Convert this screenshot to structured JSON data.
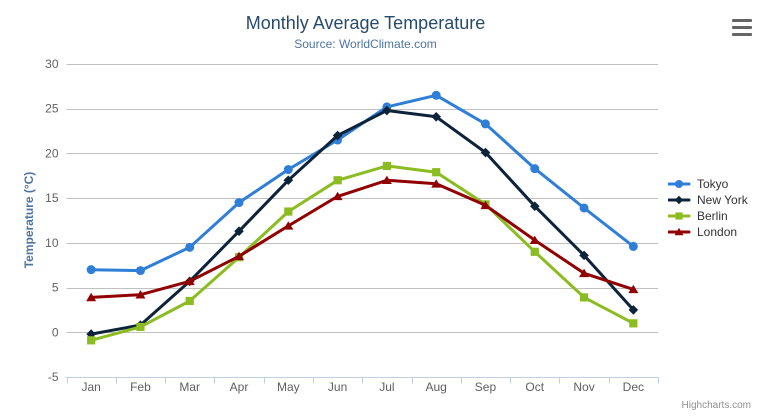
{
  "chart": {
    "title": "Monthly Average Temperature",
    "subtitle": "Source: WorldClimate.com",
    "credits": "Highcharts.com",
    "menu_icon": "hamburger-menu"
  },
  "chart_data": {
    "type": "line",
    "title": "Monthly Average Temperature",
    "subtitle": "Source: WorldClimate.com",
    "xlabel": "",
    "ylabel": "Temperature (°C)",
    "ylim": [
      -5,
      30
    ],
    "yticks": [
      -5,
      0,
      5,
      10,
      15,
      20,
      25,
      30
    ],
    "grid": true,
    "legend_position": "right",
    "categories": [
      "Jan",
      "Feb",
      "Mar",
      "Apr",
      "May",
      "Jun",
      "Jul",
      "Aug",
      "Sep",
      "Oct",
      "Nov",
      "Dec"
    ],
    "series": [
      {
        "name": "Tokyo",
        "color": "#2f7ed8",
        "marker": "circle",
        "values": [
          7.0,
          6.9,
          9.5,
          14.5,
          18.2,
          21.5,
          25.2,
          26.5,
          23.3,
          18.3,
          13.9,
          9.6
        ]
      },
      {
        "name": "New York",
        "color": "#0d233a",
        "marker": "diamond",
        "values": [
          -0.2,
          0.8,
          5.7,
          11.3,
          17.0,
          22.0,
          24.8,
          24.1,
          20.1,
          14.1,
          8.6,
          2.5
        ]
      },
      {
        "name": "Berlin",
        "color": "#8bbc21",
        "marker": "square",
        "values": [
          -0.9,
          0.6,
          3.5,
          8.4,
          13.5,
          17.0,
          18.6,
          17.9,
          14.3,
          9.0,
          3.9,
          1.0
        ]
      },
      {
        "name": "London",
        "color": "#910000",
        "marker": "triangle",
        "values": [
          3.9,
          4.2,
          5.7,
          8.5,
          11.9,
          15.2,
          17.0,
          16.6,
          14.2,
          10.3,
          6.6,
          4.8
        ]
      }
    ]
  },
  "colors": {
    "title": "#274b6d",
    "subtitle": "#4d759e",
    "y_axis_title": "#4d759e",
    "axis_labels": "#606060",
    "gridline": "#c0c0c0",
    "axis_line": "#c0d0e0",
    "legend_text": "#333333",
    "credits": "#909090",
    "menu_icon": "#666666",
    "background": "#ffffff"
  }
}
